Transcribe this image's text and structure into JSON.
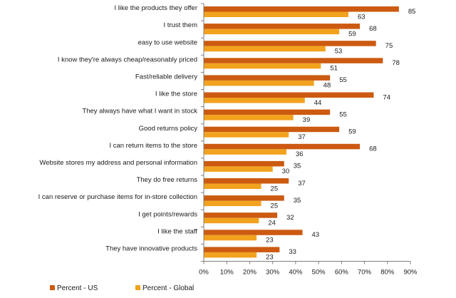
{
  "colors": {
    "us": "#CC5A10",
    "global": "#F2A21E",
    "axis": "#7f7f7f",
    "text": "#1a1a1a"
  },
  "chart_data": {
    "type": "bar",
    "orientation": "horizontal",
    "title": "",
    "xlabel": "",
    "ylabel": "",
    "xlim": [
      0,
      90
    ],
    "x_ticks": [
      "0%",
      "10%",
      "20%",
      "30%",
      "40%",
      "50%",
      "60%",
      "70%",
      "80%",
      "90%"
    ],
    "grid": false,
    "legend_position": "bottom",
    "categories": [
      "I like the products they offer",
      "I trust them",
      "easy to use website",
      "I know they're always cheap/reasonably priced",
      "Fast/reliable delivery",
      "I like the store",
      "They always have what I want in stock",
      "Good returns policy",
      "I can return items to the store",
      "Website stores my address and personal information",
      "They do free returns",
      "I can reserve or purchase items for in-store collection",
      "I get points/rewards",
      "I like the staff",
      "They have innovative products"
    ],
    "series": [
      {
        "name": "Percent - US",
        "values": [
          85,
          68,
          75,
          78,
          55,
          74,
          55,
          59,
          68,
          35,
          37,
          35,
          32,
          43,
          33
        ]
      },
      {
        "name": "Percent - Global",
        "values": [
          63,
          59,
          53,
          51,
          48,
          44,
          39,
          37,
          36,
          30,
          25,
          25,
          24,
          23,
          23
        ]
      }
    ]
  }
}
